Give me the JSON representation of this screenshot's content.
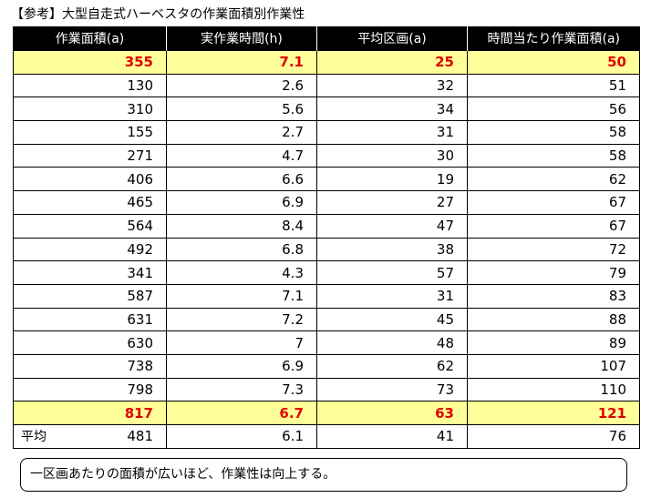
{
  "title": "【参考】大型自走式ハーベスタの作業面積別作業性",
  "table": {
    "headers": [
      "作業面積(a)",
      "実作業時間(h)",
      "平均区画(a)",
      "時間当たり作業面積(a)"
    ],
    "rows": [
      {
        "highlight": true,
        "cells": [
          "355",
          "7.1",
          "25",
          "50"
        ]
      },
      {
        "highlight": false,
        "cells": [
          "130",
          "2.6",
          "32",
          "51"
        ]
      },
      {
        "highlight": false,
        "cells": [
          "310",
          "5.6",
          "34",
          "56"
        ]
      },
      {
        "highlight": false,
        "cells": [
          "155",
          "2.7",
          "31",
          "58"
        ]
      },
      {
        "highlight": false,
        "cells": [
          "271",
          "4.7",
          "30",
          "58"
        ]
      },
      {
        "highlight": false,
        "cells": [
          "406",
          "6.6",
          "19",
          "62"
        ]
      },
      {
        "highlight": false,
        "cells": [
          "465",
          "6.9",
          "27",
          "67"
        ]
      },
      {
        "highlight": false,
        "cells": [
          "564",
          "8.4",
          "47",
          "67"
        ]
      },
      {
        "highlight": false,
        "cells": [
          "492",
          "6.8",
          "38",
          "72"
        ]
      },
      {
        "highlight": false,
        "cells": [
          "341",
          "4.3",
          "57",
          "79"
        ]
      },
      {
        "highlight": false,
        "cells": [
          "587",
          "7.1",
          "31",
          "83"
        ]
      },
      {
        "highlight": false,
        "cells": [
          "631",
          "7.2",
          "45",
          "88"
        ]
      },
      {
        "highlight": false,
        "cells": [
          "630",
          "7",
          "48",
          "89"
        ]
      },
      {
        "highlight": false,
        "cells": [
          "738",
          "6.9",
          "62",
          "107"
        ]
      },
      {
        "highlight": false,
        "cells": [
          "798",
          "7.3",
          "73",
          "110"
        ]
      },
      {
        "highlight": true,
        "cells": [
          "817",
          "6.7",
          "63",
          "121"
        ]
      }
    ],
    "average": {
      "label": "平均",
      "cells": [
        "481",
        "6.1",
        "41",
        "76"
      ]
    }
  },
  "note": "一区画あたりの面積が広いほど、作業性は向上する。",
  "colors": {
    "highlight_bg": "#ffff99",
    "highlight_text": "#e00000",
    "header_bg": "#000000"
  }
}
